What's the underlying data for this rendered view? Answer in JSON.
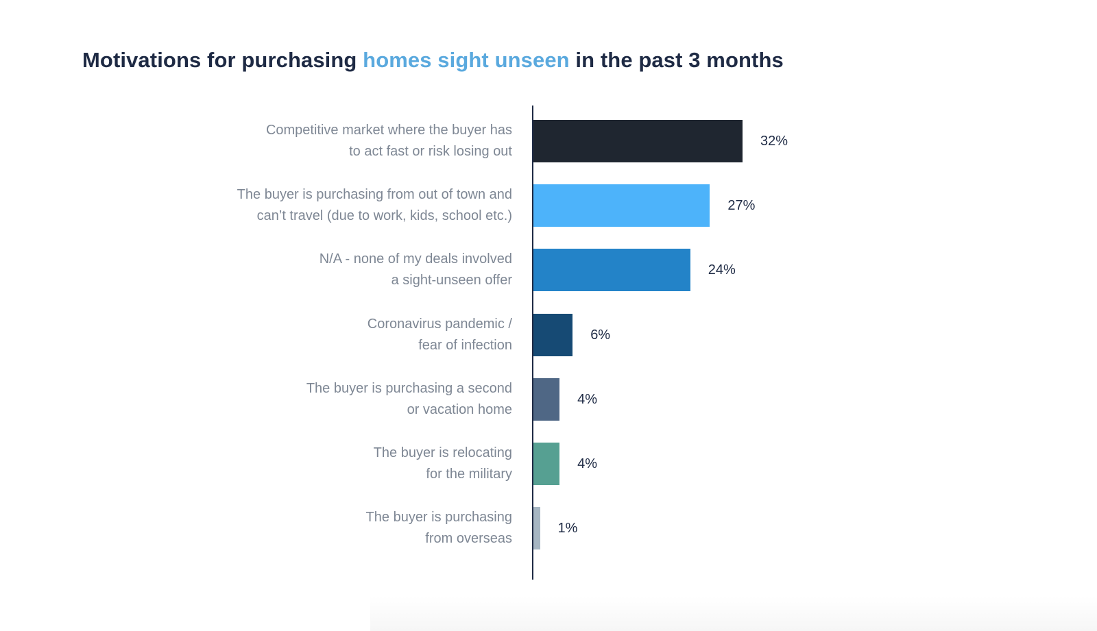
{
  "title": {
    "prefix": "Motivations for purchasing ",
    "highlight": "homes sight unseen",
    "suffix": " in the past 3 months"
  },
  "colors": {
    "title": "#1e2a44",
    "title_highlight": "#5aa9de",
    "label": "#7e8794",
    "axis": "#1e2a44"
  },
  "chart_data": {
    "type": "bar",
    "orientation": "horizontal",
    "title": "Motivations for purchasing homes sight unseen in the past 3 months",
    "xlabel": "",
    "ylabel": "",
    "xlim": [
      0,
      32
    ],
    "grid": false,
    "legend": "none",
    "categories": [
      [
        "Competitive market where the buyer has",
        "to act fast or risk losing out"
      ],
      [
        "The buyer is purchasing from out of town and",
        "can’t travel (due to work, kids, school etc.)"
      ],
      [
        "N/A - none of my deals involved",
        "a sight-unseen offer"
      ],
      [
        "Coronavirus pandemic /",
        "fear of infection"
      ],
      [
        "The buyer is purchasing a second",
        "or vacation home"
      ],
      [
        "The buyer is relocating",
        "for the military"
      ],
      [
        "The buyer is purchasing",
        "from overseas"
      ]
    ],
    "values": [
      32,
      27,
      24,
      6,
      4,
      4,
      1
    ],
    "value_labels": [
      "32%",
      "27%",
      "24%",
      "6%",
      "4%",
      "4%",
      "1%"
    ],
    "bar_colors": [
      "#1f2630",
      "#4db3fa",
      "#2383c8",
      "#164a74",
      "#4f6785",
      "#56a092",
      "#a6b6c3"
    ]
  }
}
